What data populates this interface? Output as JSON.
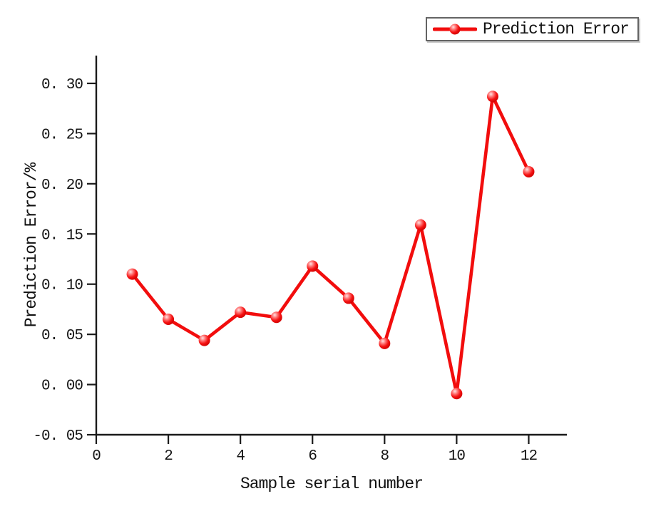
{
  "chart_data": {
    "type": "line",
    "series_name": "Prediction Error",
    "xlabel": "Sample serial number",
    "ylabel": "Prediction Error/%",
    "x": [
      1,
      2,
      3,
      4,
      5,
      6,
      7,
      8,
      9,
      10,
      11,
      12
    ],
    "values": [
      0.11,
      0.065,
      0.044,
      0.072,
      0.067,
      0.118,
      0.086,
      0.041,
      0.159,
      -0.009,
      0.287,
      0.212
    ],
    "xlim": [
      0,
      13.06
    ],
    "ylim": [
      -0.05,
      0.328
    ],
    "x_ticks": [
      0,
      2,
      4,
      6,
      8,
      10,
      12
    ],
    "x_tick_labels": [
      "0",
      "2",
      "4",
      "6",
      "8",
      "10",
      "12"
    ],
    "y_ticks": [
      0.3,
      0.25,
      0.2,
      0.15,
      0.1,
      0.05,
      0.0,
      -0.05
    ],
    "y_tick_labels": [
      "0. 30",
      "0. 25",
      "0. 20",
      "0. 15",
      "0. 10",
      "0. 05",
      "0. 00",
      "-0. 05"
    ],
    "grid": false,
    "legend_position": "top-right",
    "line_color": "#f20d0d",
    "marker_style": "glossy-red-ball",
    "axis_color": "#1a1a1a"
  }
}
